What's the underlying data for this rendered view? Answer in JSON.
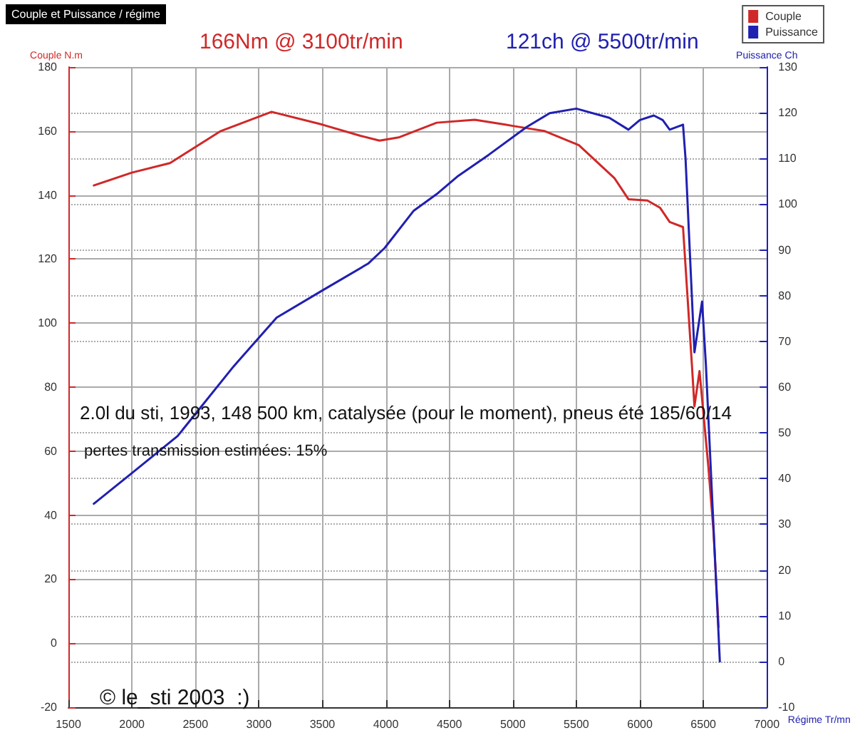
{
  "chart_data": {
    "type": "line",
    "title": "Couple et Puissance / régime",
    "xlabel": "Régime Tr/mn",
    "ylabel": "Couple N.m",
    "y2label": "Puissance Ch",
    "annotations": [
      "166Nm @ 3100tr/min",
      "121ch @ 5500tr/min",
      "2.0l du sti, 1993, 148 500 km, catalysée (pour le moment), pneus été 185/60/14",
      " pertes transmission estimées: 15%",
      "© le_sti 2003  :)"
    ],
    "xlim": [
      1500,
      7000
    ],
    "xticks": [
      1500,
      2000,
      2500,
      3000,
      3500,
      4000,
      4500,
      5000,
      5500,
      6000,
      6500,
      7000
    ],
    "ylim": [
      -20,
      180
    ],
    "yticks": [
      -20,
      0,
      20,
      40,
      60,
      80,
      100,
      120,
      140,
      160,
      180
    ],
    "y2lim": [
      -10,
      130
    ],
    "y2ticks": [
      -10,
      0,
      10,
      20,
      30,
      40,
      50,
      60,
      70,
      80,
      90,
      100,
      110,
      120,
      130
    ],
    "grid": true,
    "legend": "top right",
    "marker": "none",
    "line_style": "solid",
    "series": [
      {
        "name": "Couple",
        "color": "#d02828",
        "x": [
          1700,
          2000,
          2300,
          2500,
          2700,
          3000,
          3100,
          3500,
          3800,
          3950,
          4100,
          4400,
          4700,
          4940,
          5000,
          5250,
          5520,
          5800,
          5910,
          6060,
          6160,
          6235,
          6340,
          6410,
          6430,
          6470,
          6540,
          6580,
          6620
        ],
        "values": [
          143,
          147,
          150,
          155,
          160,
          164.5,
          166,
          162,
          158.5,
          157,
          158,
          162.6,
          163.5,
          162,
          161.6,
          160,
          155.6,
          145.3,
          138.7,
          138.3,
          136,
          131.6,
          130,
          87,
          74,
          85,
          55,
          35,
          5
        ]
      },
      {
        "name": "Puissance",
        "color": "#2020b0",
        "axis": "y2",
        "x": [
          1700,
          2000,
          2360,
          2800,
          3140,
          3510,
          3860,
          3990,
          4220,
          4400,
          4570,
          4810,
          5110,
          5290,
          5500,
          5760,
          5910,
          6000,
          6110,
          6180,
          6235,
          6340,
          6360,
          6430,
          6490,
          6520,
          6630
        ],
        "values": [
          34.5,
          41.2,
          49.3,
          64.5,
          75.2,
          81.3,
          87,
          90.4,
          98.6,
          102.2,
          106.2,
          110.8,
          116.9,
          119.9,
          120.9,
          118.9,
          116.3,
          118.4,
          119.4,
          118.4,
          116.3,
          117.4,
          109.9,
          67.6,
          78.7,
          65,
          0
        ]
      }
    ]
  }
}
